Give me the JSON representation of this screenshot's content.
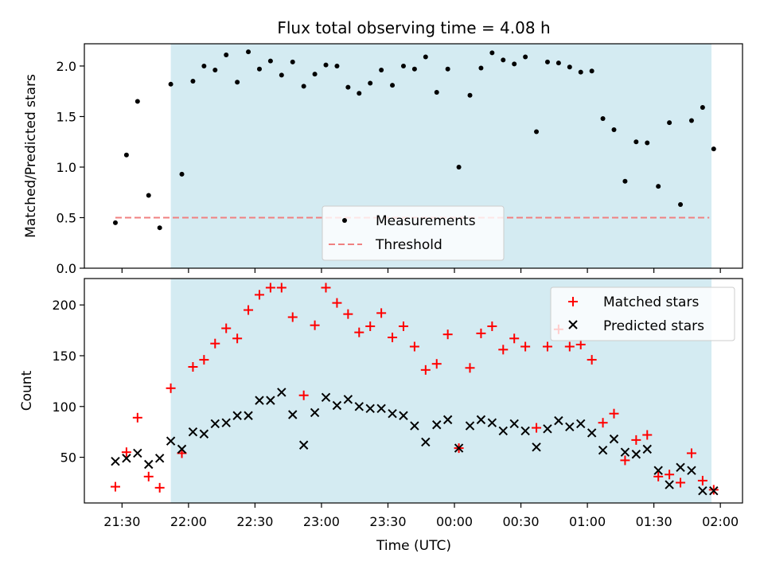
{
  "figure": {
    "title": "Flux total observing time = 4.08 h",
    "xlabel": "Time (UTC)"
  },
  "colors": {
    "band": "#d4ebf2",
    "measure": "#000000",
    "threshold": "#f08080",
    "matched": "#ff0000",
    "predicted": "#000000",
    "axes": "#000000"
  },
  "chart_data": [
    {
      "type": "scatter",
      "ylabel": "Matched/Predicted stars",
      "xlim": [
        "21:13",
        "02:10"
      ],
      "ylim": [
        0,
        2.22
      ],
      "yticks": [
        0.0,
        0.5,
        1.0,
        1.5,
        2.0
      ],
      "ytick_labels": [
        "0.0",
        "0.5",
        "1.0",
        "1.5",
        "2.0"
      ],
      "shaded_range": [
        "21:52",
        "01:56"
      ],
      "grid": false,
      "legend_position": "lower-center",
      "legend": [
        {
          "label": "Measurements",
          "marker": "dot"
        },
        {
          "label": "Threshold",
          "marker": "dashed-line"
        }
      ],
      "series": [
        {
          "name": "Measurements",
          "marker": "dot",
          "x": [
            "21:27",
            "21:32",
            "21:37",
            "21:42",
            "21:47",
            "21:52",
            "21:57",
            "22:02",
            "22:07",
            "22:12",
            "22:17",
            "22:22",
            "22:27",
            "22:32",
            "22:37",
            "22:42",
            "22:47",
            "22:52",
            "22:57",
            "23:02",
            "23:07",
            "23:12",
            "23:17",
            "23:22",
            "23:27",
            "23:32",
            "23:37",
            "23:42",
            "23:47",
            "23:52",
            "23:57",
            "00:02",
            "00:07",
            "00:12",
            "00:17",
            "00:22",
            "00:27",
            "00:32",
            "00:37",
            "00:42",
            "00:47",
            "00:52",
            "00:57",
            "01:02",
            "01:07",
            "01:12",
            "01:17",
            "01:22",
            "01:27",
            "01:32",
            "01:37",
            "01:42",
            "01:47",
            "01:52",
            "01:57"
          ],
          "y": [
            0.45,
            1.12,
            1.65,
            0.72,
            0.4,
            1.82,
            0.93,
            1.85,
            2.0,
            1.96,
            2.11,
            1.84,
            2.14,
            1.97,
            2.05,
            1.91,
            2.04,
            1.8,
            1.92,
            2.01,
            2.0,
            1.79,
            1.73,
            1.83,
            1.96,
            1.81,
            2.0,
            1.97,
            2.09,
            1.74,
            1.97,
            1.0,
            1.71,
            1.98,
            2.13,
            2.06,
            2.02,
            2.09,
            1.35,
            2.04,
            2.03,
            1.99,
            1.94,
            1.95,
            1.48,
            1.37,
            0.86,
            1.25,
            1.24,
            0.81,
            1.44,
            0.63,
            1.46,
            1.59,
            1.18
          ]
        },
        {
          "name": "Threshold",
          "type": "line",
          "style": "dashed",
          "x": [
            "21:27",
            "01:55"
          ],
          "y": [
            0.5,
            0.5
          ]
        }
      ]
    },
    {
      "type": "scatter",
      "ylabel": "Count",
      "xlim": [
        "21:13",
        "02:10"
      ],
      "ylim": [
        5,
        226
      ],
      "yticks": [
        50,
        100,
        150,
        200
      ],
      "ytick_labels": [
        "50",
        "100",
        "150",
        "200"
      ],
      "xtick_labels": [
        "21:30",
        "22:00",
        "22:30",
        "23:00",
        "23:30",
        "00:00",
        "00:30",
        "01:00",
        "01:30",
        "02:00"
      ],
      "shaded_range": [
        "21:52",
        "01:56"
      ],
      "grid": false,
      "legend_position": "upper-right",
      "legend": [
        {
          "label": "Matched stars",
          "marker": "plus"
        },
        {
          "label": "Predicted stars",
          "marker": "x"
        }
      ],
      "series": [
        {
          "name": "Matched stars",
          "marker": "plus",
          "x": [
            "21:27",
            "21:32",
            "21:37",
            "21:42",
            "21:47",
            "21:52",
            "21:57",
            "22:02",
            "22:07",
            "22:12",
            "22:17",
            "22:22",
            "22:27",
            "22:32",
            "22:37",
            "22:42",
            "22:47",
            "22:52",
            "22:57",
            "23:02",
            "23:07",
            "23:12",
            "23:17",
            "23:22",
            "23:27",
            "23:32",
            "23:37",
            "23:42",
            "23:47",
            "23:52",
            "23:57",
            "00:02",
            "00:07",
            "00:12",
            "00:17",
            "00:22",
            "00:27",
            "00:32",
            "00:37",
            "00:42",
            "00:47",
            "00:52",
            "00:57",
            "01:02",
            "01:07",
            "01:12",
            "01:17",
            "01:22",
            "01:27",
            "01:32",
            "01:37",
            "01:42",
            "01:47",
            "01:52",
            "01:57"
          ],
          "y": [
            21,
            55,
            89,
            31,
            20,
            118,
            54,
            139,
            146,
            162,
            177,
            167,
            195,
            210,
            217,
            217,
            188,
            111,
            180,
            217,
            202,
            191,
            173,
            179,
            192,
            168,
            179,
            159,
            136,
            142,
            171,
            59,
            138,
            172,
            179,
            156,
            167,
            159,
            79,
            159,
            176,
            159,
            161,
            146,
            84,
            93,
            47,
            67,
            72,
            31,
            33,
            25,
            54,
            27,
            18
          ]
        },
        {
          "name": "Predicted stars",
          "marker": "x",
          "x": [
            "21:27",
            "21:32",
            "21:37",
            "21:42",
            "21:47",
            "21:52",
            "21:57",
            "22:02",
            "22:07",
            "22:12",
            "22:17",
            "22:22",
            "22:27",
            "22:32",
            "22:37",
            "22:42",
            "22:47",
            "22:52",
            "22:57",
            "23:02",
            "23:07",
            "23:12",
            "23:17",
            "23:22",
            "23:27",
            "23:32",
            "23:37",
            "23:42",
            "23:47",
            "23:52",
            "23:57",
            "00:02",
            "00:07",
            "00:12",
            "00:17",
            "00:22",
            "00:27",
            "00:32",
            "00:37",
            "00:42",
            "00:47",
            "00:52",
            "00:57",
            "01:02",
            "01:07",
            "01:12",
            "01:17",
            "01:22",
            "01:27",
            "01:32",
            "01:37",
            "01:42",
            "01:47",
            "01:52",
            "01:57"
          ],
          "y": [
            46,
            49,
            54,
            43,
            49,
            66,
            58,
            75,
            73,
            83,
            84,
            91,
            91,
            106,
            106,
            114,
            92,
            62,
            94,
            109,
            101,
            107,
            100,
            98,
            98,
            93,
            91,
            81,
            65,
            82,
            87,
            59,
            81,
            87,
            84,
            76,
            83,
            76,
            60,
            78,
            86,
            80,
            83,
            74,
            57,
            68,
            55,
            53,
            58,
            37,
            23,
            40,
            37,
            17,
            17
          ]
        }
      ]
    }
  ]
}
